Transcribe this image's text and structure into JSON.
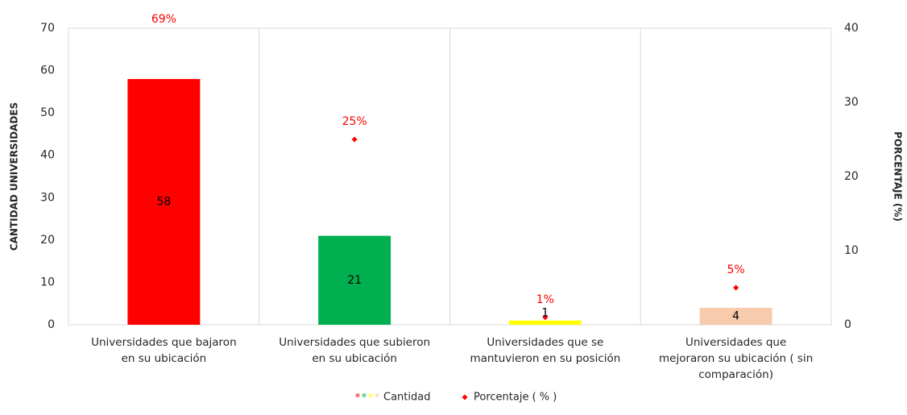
{
  "chart_data": {
    "type": "bar_point",
    "categories": [
      "Universidades que bajaron\nen su ubicación",
      "Universidades que subieron\nen su ubicación",
      "Universidades que se\nmantuvieron en su posición",
      "Universidades que\nmejoraron su ubicación ( sin\ncomparación)"
    ],
    "series": [
      {
        "name": "Cantidad",
        "colors": [
          "#ff0000",
          "#00b050",
          "#ffff00",
          "#f8cbad"
        ],
        "values": [
          58,
          21,
          1,
          4
        ]
      },
      {
        "name": "Porcentaje ( % )",
        "color": "#ff0000",
        "axis": "y2",
        "values": [
          69,
          25,
          1,
          5
        ],
        "value_labels": [
          "69%",
          "25%",
          "1%",
          "5%"
        ]
      }
    ],
    "ylabel": "CANTIDAD UNIVERSIDADES",
    "y2label": "PORCENTAJE (%)",
    "ylim": [
      0,
      70
    ],
    "yticks": [
      0,
      10,
      20,
      30,
      40,
      50,
      60,
      70
    ],
    "y2lim": [
      0,
      40
    ],
    "y2ticks": [
      0,
      10,
      20,
      30,
      40
    ],
    "legend": "bottom"
  }
}
